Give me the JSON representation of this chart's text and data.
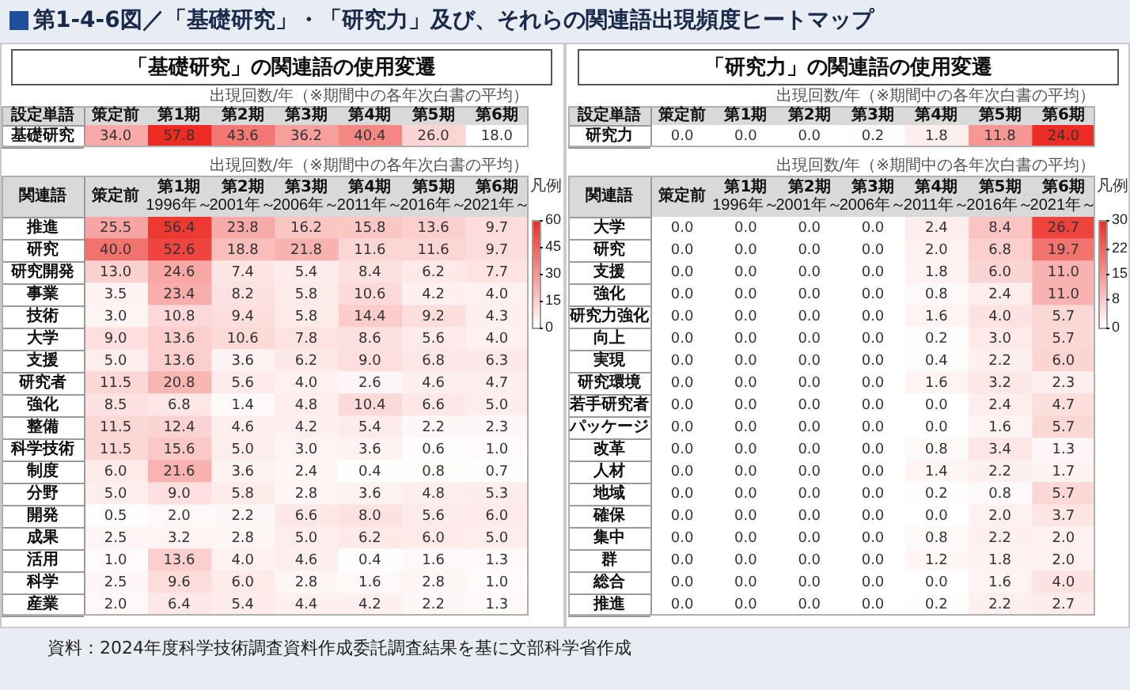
{
  "chart_data": [
    {
      "type": "heatmap",
      "title": "「基礎研究」の関連語の使用変遷",
      "subtitle": "出現回数/年（※期間中の各年次白書の平均）",
      "ylabel": "設定単語",
      "annotations": [
        "第1-4-6図／「基礎研究」・「研究力」及び、それらの関連語出現頻度ヒートマップ"
      ],
      "categories": [
        "策定前",
        "第1期",
        "第2期",
        "第3期",
        "第4期",
        "第5期",
        "第6期"
      ],
      "y_categories": [
        "基礎研究"
      ],
      "cells": [
        [
          34.0,
          57.8,
          43.6,
          36.2,
          40.4,
          26.0,
          18.0
        ]
      ],
      "cell_labels": [
        [
          "34.0",
          "57.8",
          "43.6",
          "36.2",
          "40.4",
          "26.0",
          "18.0"
        ]
      ],
      "data_labels": true
    },
    {
      "type": "heatmap",
      "subtitle": "出現回数/年（※期間中の各年次白書の平均）",
      "ylabel": "関連語",
      "legend_title": "凡例",
      "categories": [
        "策定前",
        "第1期\n1996年～",
        "第2期\n2001年～",
        "第3期\n2006年～",
        "第4期\n2011年～",
        "第5期\n2016年～",
        "第6期\n2021年～"
      ],
      "y_categories": [
        "推進",
        "研究",
        "研究開発",
        "事業",
        "技術",
        "大学",
        "支援",
        "研究者",
        "強化",
        "整備",
        "科学技術",
        "制度",
        "分野",
        "開発",
        "成果",
        "活用",
        "科学",
        "産業"
      ],
      "cells": [
        [
          25.5,
          56.4,
          23.8,
          16.2,
          15.8,
          13.6,
          9.7
        ],
        [
          40.0,
          52.6,
          18.8,
          21.8,
          11.6,
          11.6,
          9.7
        ],
        [
          13.0,
          24.6,
          7.4,
          5.4,
          8.4,
          6.2,
          7.7
        ],
        [
          3.5,
          23.4,
          8.2,
          5.8,
          10.6,
          4.2,
          4.0
        ],
        [
          3.0,
          10.8,
          9.4,
          5.8,
          14.4,
          9.2,
          4.3
        ],
        [
          9.0,
          13.6,
          10.6,
          7.8,
          8.6,
          5.6,
          4.0
        ],
        [
          5.0,
          13.6,
          3.6,
          6.2,
          9.0,
          6.8,
          6.3
        ],
        [
          11.5,
          20.8,
          5.6,
          4.0,
          2.6,
          4.6,
          4.7
        ],
        [
          8.5,
          6.8,
          1.4,
          4.8,
          10.4,
          6.6,
          5.0
        ],
        [
          11.5,
          12.4,
          4.6,
          4.2,
          5.4,
          2.2,
          2.3
        ],
        [
          11.5,
          15.6,
          5.0,
          3.0,
          3.6,
          0.6,
          1.0
        ],
        [
          6.0,
          21.6,
          3.6,
          2.4,
          0.4,
          0.8,
          0.7
        ],
        [
          5.0,
          9.0,
          5.8,
          2.8,
          3.6,
          4.8,
          5.3
        ],
        [
          0.5,
          2.0,
          2.2,
          6.6,
          8.0,
          5.6,
          6.0
        ],
        [
          2.5,
          3.2,
          2.8,
          5.0,
          6.2,
          6.0,
          5.0
        ],
        [
          1.0,
          13.6,
          4.0,
          4.6,
          0.4,
          1.6,
          1.3
        ],
        [
          2.5,
          9.6,
          6.0,
          2.8,
          1.6,
          2.8,
          1.0
        ],
        [
          2.0,
          6.4,
          5.4,
          4.4,
          4.2,
          2.2,
          1.3
        ]
      ],
      "cell_labels": [
        [
          "25.5",
          "56.4",
          "23.8",
          "16.2",
          "15.8",
          "13.6",
          "9.7"
        ],
        [
          "40.0",
          "52.6",
          "18.8",
          "21.8",
          "11.6",
          "11.6",
          "9.7"
        ],
        [
          "13.0",
          "24.6",
          "7.4",
          "5.4",
          "8.4",
          "6.2",
          "7.7"
        ],
        [
          "3.5",
          "23.4",
          "8.2",
          "5.8",
          "10.6",
          "4.2",
          "4.0"
        ],
        [
          "3.0",
          "10.8",
          "9.4",
          "5.8",
          "14.4",
          "9.2",
          "4.3"
        ],
        [
          "9.0",
          "13.6",
          "10.6",
          "7.8",
          "8.6",
          "5.6",
          "4.0"
        ],
        [
          "5.0",
          "13.6",
          "3.6",
          "6.2",
          "9.0",
          "6.8",
          "6.3"
        ],
        [
          "11.5",
          "20.8",
          "5.6",
          "4.0",
          "2.6",
          "4.6",
          "4.7"
        ],
        [
          "8.5",
          "6.8",
          "1.4",
          "4.8",
          "10.4",
          "6.6",
          "5.0"
        ],
        [
          "11.5",
          "12.4",
          "4.6",
          "4.2",
          "5.4",
          "2.2",
          "2.3"
        ],
        [
          "11.5",
          "15.6",
          "5.0",
          "3.0",
          "3.6",
          "0.6",
          "1.0"
        ],
        [
          "6.0",
          "21.6",
          "3.6",
          "2.4",
          "0.4",
          "0.8",
          "0.7"
        ],
        [
          "5.0",
          "9.0",
          "5.8",
          "2.8",
          "3.6",
          "4.8",
          "5.3"
        ],
        [
          "0.5",
          "2.0",
          "2.2",
          "6.6",
          "8.0",
          "5.6",
          "6.0"
        ],
        [
          "2.5",
          "3.2",
          "2.8",
          "5.0",
          "6.2",
          "6.0",
          "5.0"
        ],
        [
          "1.0",
          "13.6",
          "4.0",
          "4.6",
          "0.4",
          "1.6",
          "1.3"
        ],
        [
          "2.5",
          "9.6",
          "6.0",
          "2.8",
          "1.6",
          "2.8",
          "1.0"
        ],
        [
          "2.0",
          "6.4",
          "5.4",
          "4.4",
          "4.2",
          "2.2",
          "1.3"
        ]
      ],
      "clim": [
        0,
        60
      ],
      "cticks": [
        0,
        15,
        30,
        45,
        60
      ],
      "data_labels": true
    },
    {
      "type": "heatmap",
      "title": "「研究力」の関連語の使用変遷",
      "subtitle": "出現回数/年（※期間中の各年次白書の平均）",
      "ylabel": "設定単語",
      "categories": [
        "策定前",
        "第1期",
        "第2期",
        "第3期",
        "第4期",
        "第5期",
        "第6期"
      ],
      "y_categories": [
        "研究力"
      ],
      "cells": [
        [
          0.0,
          0.0,
          0.0,
          0.2,
          1.8,
          11.8,
          24.0
        ]
      ],
      "cell_labels": [
        [
          "0.0",
          "0.0",
          "0.0",
          "0.2",
          "1.8",
          "11.8",
          "24.0"
        ]
      ],
      "data_labels": true
    },
    {
      "type": "heatmap",
      "subtitle": "出現回数/年（※期間中の各年次白書の平均）",
      "ylabel": "関連語",
      "legend_title": "凡例",
      "annotations": [
        "資料：2024年度科学技術調査資料作成委託調査結果を基に文部科学省作成"
      ],
      "categories": [
        "策定前",
        "第1期\n1996年～",
        "第2期\n2001年～",
        "第3期\n2006年～",
        "第4期\n2011年～",
        "第5期\n2016年～",
        "第6期\n2021年～"
      ],
      "y_categories": [
        "大学",
        "研究",
        "支援",
        "強化",
        "研究力強化",
        "向上",
        "実現",
        "研究環境",
        "若手研究者",
        "パッケージ",
        "改革",
        "人材",
        "地域",
        "確保",
        "集中",
        "群",
        "総合",
        "推進"
      ],
      "cells": [
        [
          0.0,
          0.0,
          0.0,
          0.0,
          2.4,
          8.4,
          26.7
        ],
        [
          0.0,
          0.0,
          0.0,
          0.0,
          2.0,
          6.8,
          19.7
        ],
        [
          0.0,
          0.0,
          0.0,
          0.0,
          1.8,
          6.0,
          11.0
        ],
        [
          0.0,
          0.0,
          0.0,
          0.0,
          0.8,
          2.4,
          11.0
        ],
        [
          0.0,
          0.0,
          0.0,
          0.0,
          1.6,
          4.0,
          5.7
        ],
        [
          0.0,
          0.0,
          0.0,
          0.0,
          0.2,
          3.0,
          5.7
        ],
        [
          0.0,
          0.0,
          0.0,
          0.0,
          0.4,
          2.2,
          6.0
        ],
        [
          0.0,
          0.0,
          0.0,
          0.0,
          1.6,
          3.2,
          2.3
        ],
        [
          0.0,
          0.0,
          0.0,
          0.0,
          0.0,
          2.4,
          4.7
        ],
        [
          0.0,
          0.0,
          0.0,
          0.0,
          0.0,
          1.6,
          5.7
        ],
        [
          0.0,
          0.0,
          0.0,
          0.0,
          0.8,
          3.4,
          1.3
        ],
        [
          0.0,
          0.0,
          0.0,
          0.0,
          1.4,
          2.2,
          1.7
        ],
        [
          0.0,
          0.0,
          0.0,
          0.0,
          0.2,
          0.8,
          5.7
        ],
        [
          0.0,
          0.0,
          0.0,
          0.0,
          0.0,
          2.0,
          3.7
        ],
        [
          0.0,
          0.0,
          0.0,
          0.0,
          0.8,
          2.2,
          2.0
        ],
        [
          0.0,
          0.0,
          0.0,
          0.0,
          1.2,
          1.8,
          2.0
        ],
        [
          0.0,
          0.0,
          0.0,
          0.0,
          0.0,
          1.6,
          4.0
        ],
        [
          0.0,
          0.0,
          0.0,
          0.0,
          0.2,
          2.2,
          2.7
        ]
      ],
      "cell_labels": [
        [
          "0.0",
          "0.0",
          "0.0",
          "0.0",
          "2.4",
          "8.4",
          "26.7"
        ],
        [
          "0.0",
          "0.0",
          "0.0",
          "0.0",
          "2.0",
          "6.8",
          "19.7"
        ],
        [
          "0.0",
          "0.0",
          "0.0",
          "0.0",
          "1.8",
          "6.0",
          "11.0"
        ],
        [
          "0.0",
          "0.0",
          "0.0",
          "0.0",
          "0.8",
          "2.4",
          "11.0"
        ],
        [
          "0.0",
          "0.0",
          "0.0",
          "0.0",
          "1.6",
          "4.0",
          "5.7"
        ],
        [
          "0.0",
          "0.0",
          "0.0",
          "0.0",
          "0.2",
          "3.0",
          "5.7"
        ],
        [
          "0.0",
          "0.0",
          "0.0",
          "0.0",
          "0.4",
          "2.2",
          "6.0"
        ],
        [
          "0.0",
          "0.0",
          "0.0",
          "0.0",
          "1.6",
          "3.2",
          "2.3"
        ],
        [
          "0.0",
          "0.0",
          "0.0",
          "0.0",
          "0.0",
          "2.4",
          "4.7"
        ],
        [
          "0.0",
          "0.0",
          "0.0",
          "0.0",
          "0.0",
          "1.6",
          "5.7"
        ],
        [
          "0.0",
          "0.0",
          "0.0",
          "0.0",
          "0.8",
          "3.4",
          "1.3"
        ],
        [
          "0.0",
          "0.0",
          "0.0",
          "0.0",
          "1.4",
          "2.2",
          "1.7"
        ],
        [
          "0.0",
          "0.0",
          "0.0",
          "0.0",
          "0.2",
          "0.8",
          "5.7"
        ],
        [
          "0.0",
          "0.0",
          "0.0",
          "0.0",
          "0.0",
          "2.0",
          "3.7"
        ],
        [
          "0.0",
          "0.0",
          "0.0",
          "0.0",
          "0.8",
          "2.2",
          "2.0"
        ],
        [
          "0.0",
          "0.0",
          "0.0",
          "0.0",
          "1.2",
          "1.8",
          "2.0"
        ],
        [
          "0.0",
          "0.0",
          "0.0",
          "0.0",
          "0.0",
          "1.6",
          "4.0"
        ],
        [
          "0.0",
          "0.0",
          "0.0",
          "0.0",
          "0.2",
          "2.2",
          "2.7"
        ]
      ],
      "clim": [
        0,
        30
      ],
      "cticks": [
        0,
        8,
        15,
        22,
        30
      ],
      "data_labels": true
    }
  ]
}
